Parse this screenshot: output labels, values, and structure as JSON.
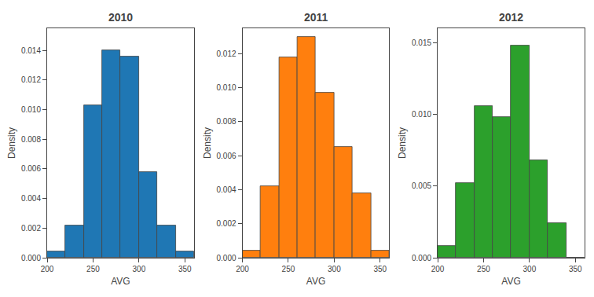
{
  "chart_data": [
    {
      "type": "histogram",
      "title": "2010",
      "bins": [
        200,
        220,
        240,
        260,
        280,
        300,
        320,
        340,
        360
      ],
      "values": [
        0.0004,
        0.0022,
        0.0103,
        0.014,
        0.0136,
        0.0058,
        0.0022,
        0.0004
      ],
      "xlabel": "AVG",
      "ylabel": "Density",
      "xlim": [
        200,
        360
      ],
      "xticks": [
        200,
        250,
        300,
        350
      ],
      "ylim": [
        0,
        0.0155
      ],
      "yticks": [
        {
          "value": 0.0,
          "label": "0.000"
        },
        {
          "value": 0.002,
          "label": "0.002"
        },
        {
          "value": 0.004,
          "label": "0.004"
        },
        {
          "value": 0.006,
          "label": "0.006"
        },
        {
          "value": 0.008,
          "label": "0.008"
        },
        {
          "value": 0.01,
          "label": "0.010"
        },
        {
          "value": 0.012,
          "label": "0.012"
        },
        {
          "value": 0.014,
          "label": "0.014"
        }
      ],
      "grid": false
    },
    {
      "type": "histogram",
      "title": "2011",
      "bins": [
        200,
        220,
        240,
        260,
        280,
        300,
        320,
        340,
        360
      ],
      "values": [
        0.0004,
        0.0042,
        0.0118,
        0.013,
        0.0097,
        0.0065,
        0.0038,
        0.0004
      ],
      "xlabel": "AVG",
      "ylabel": "Density",
      "xlim": [
        200,
        360
      ],
      "xticks": [
        200,
        250,
        300,
        350
      ],
      "ylim": [
        0,
        0.0135
      ],
      "yticks": [
        {
          "value": 0.0,
          "label": "0.000"
        },
        {
          "value": 0.002,
          "label": "0.002"
        },
        {
          "value": 0.004,
          "label": "0.004"
        },
        {
          "value": 0.006,
          "label": "0.006"
        },
        {
          "value": 0.008,
          "label": "0.008"
        },
        {
          "value": 0.01,
          "label": "0.010"
        },
        {
          "value": 0.012,
          "label": "0.012"
        }
      ],
      "grid": false
    },
    {
      "type": "histogram",
      "title": "2012",
      "bins": [
        200,
        220,
        240,
        260,
        280,
        300,
        320,
        340,
        360
      ],
      "values": [
        0.0008,
        0.0052,
        0.0106,
        0.0098,
        0.0148,
        0.0068,
        0.0024,
        0.0
      ],
      "xlabel": "AVG",
      "ylabel": "Density",
      "xlim": [
        200,
        360
      ],
      "xticks": [
        200,
        250,
        300,
        350
      ],
      "ylim": [
        0,
        0.016
      ],
      "yticks": [
        {
          "value": 0.0,
          "label": "0.000"
        },
        {
          "value": 0.005,
          "label": "0.005"
        },
        {
          "value": 0.01,
          "label": "0.010"
        },
        {
          "value": 0.015,
          "label": "0.015"
        }
      ],
      "grid": false
    }
  ]
}
